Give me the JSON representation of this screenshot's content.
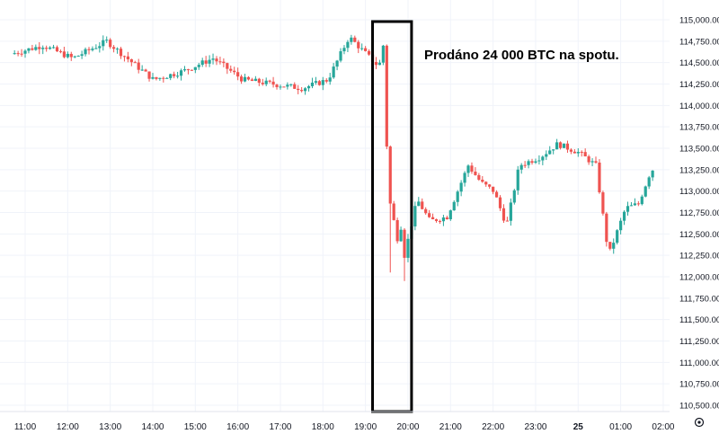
{
  "annotation": "Prodáno 24 000 BTC na spotu.",
  "colors": {
    "up": "#26a69a",
    "down": "#ef5350",
    "grid": "#f0f3fa",
    "box": "#000000"
  },
  "icons": {
    "settings": "gear-icon"
  },
  "chart_data": {
    "type": "candlestick",
    "title": "",
    "xlabel": "",
    "ylabel": "",
    "ylim": [
      110500,
      115000
    ],
    "y_tick_labels": [
      "110,500.00",
      "110,750.00",
      "111,000.00",
      "111,250.00",
      "111,500.00",
      "111,750.00",
      "112,000.00",
      "112,250.00",
      "112,500.00",
      "112,750.00",
      "113,000.00",
      "113,250.00",
      "113,500.00",
      "113,750.00",
      "114,000.00",
      "114,250.00",
      "114,500.00",
      "114,750.00",
      "115,000.00"
    ],
    "x_tick_labels": [
      "11:00",
      "12:00",
      "13:00",
      "14:00",
      "15:00",
      "16:00",
      "17:00",
      "18:00",
      "19:00",
      "20:00",
      "21:00",
      "22:00",
      "23:00",
      "25",
      "01:00",
      "02:00"
    ],
    "grid": true,
    "highlight_range": [
      "19:10",
      "20:05"
    ],
    "series": [
      {
        "hours": [
          10.75,
          11.5,
          12.2,
          13.0,
          13.6,
          14.1,
          14.8,
          15.5,
          16.2,
          16.9,
          17.6,
          18.2,
          18.7,
          19.1,
          19.4,
          19.5,
          19.55,
          19.65,
          19.7,
          19.8,
          19.9,
          20.0,
          20.3,
          20.6,
          21.0,
          21.5,
          21.8,
          22.1,
          22.4,
          22.7,
          23.2,
          23.6,
          24.1,
          24.5,
          24.8,
          25.2,
          25.5,
          25.8
        ],
        "prices": [
          114600,
          114700,
          114550,
          114750,
          114500,
          114300,
          114400,
          114550,
          114300,
          114250,
          114200,
          114300,
          114800,
          114600,
          114450,
          114700,
          113900,
          112800,
          112950,
          112350,
          112650,
          112250,
          112900,
          112650,
          112700,
          113300,
          113100,
          113000,
          112600,
          113300,
          113400,
          113550,
          113450,
          113300,
          112250,
          112800,
          112850,
          113250
        ]
      }
    ]
  }
}
